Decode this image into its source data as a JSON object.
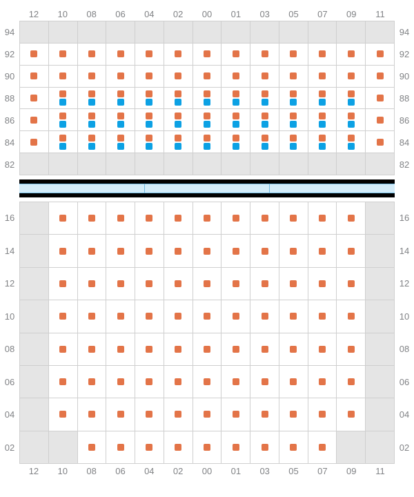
{
  "colors": {
    "orange_marker": "#e37448",
    "blue_marker": "#0ca1e4",
    "inactive_cell_bg": "#e5e5e5",
    "active_cell_bg": "#ffffff",
    "grid_line": "#cfcfcf",
    "label_text": "#808285",
    "divider_black": "#000000",
    "divider_strip_bg": "#d3ecf9",
    "divider_strip_border": "#6fb9e0"
  },
  "columns": [
    "12",
    "10",
    "08",
    "06",
    "04",
    "02",
    "00",
    "01",
    "03",
    "05",
    "07",
    "09",
    "11"
  ],
  "top_grid": {
    "rows": [
      "94",
      "92",
      "90",
      "88",
      "86",
      "84",
      "82"
    ],
    "cells": [
      {
        "row": "94",
        "all_inactive": true
      },
      {
        "row": "92",
        "markers": [
          [
            "o"
          ],
          [
            "o"
          ],
          [
            "o"
          ],
          [
            "o"
          ],
          [
            "o"
          ],
          [
            "o"
          ],
          [
            "o"
          ],
          [
            "o"
          ],
          [
            "o"
          ],
          [
            "o"
          ],
          [
            "o"
          ],
          [
            "o"
          ],
          [
            "o"
          ]
        ]
      },
      {
        "row": "90",
        "markers": [
          [
            "o"
          ],
          [
            "o"
          ],
          [
            "o"
          ],
          [
            "o"
          ],
          [
            "o"
          ],
          [
            "o"
          ],
          [
            "o"
          ],
          [
            "o"
          ],
          [
            "o"
          ],
          [
            "o"
          ],
          [
            "o"
          ],
          [
            "o"
          ],
          [
            "o"
          ]
        ]
      },
      {
        "row": "88",
        "markers": [
          [
            "o"
          ],
          [
            "o",
            "b"
          ],
          [
            "o",
            "b"
          ],
          [
            "o",
            "b"
          ],
          [
            "o",
            "b"
          ],
          [
            "o",
            "b"
          ],
          [
            "o",
            "b"
          ],
          [
            "o",
            "b"
          ],
          [
            "o",
            "b"
          ],
          [
            "o",
            "b"
          ],
          [
            "o",
            "b"
          ],
          [
            "o",
            "b"
          ],
          [
            "o"
          ]
        ]
      },
      {
        "row": "86",
        "markers": [
          [
            "o"
          ],
          [
            "o",
            "b"
          ],
          [
            "o",
            "b"
          ],
          [
            "o",
            "b"
          ],
          [
            "o",
            "b"
          ],
          [
            "o",
            "b"
          ],
          [
            "o",
            "b"
          ],
          [
            "o",
            "b"
          ],
          [
            "o",
            "b"
          ],
          [
            "o",
            "b"
          ],
          [
            "o",
            "b"
          ],
          [
            "o",
            "b"
          ],
          [
            "o"
          ]
        ]
      },
      {
        "row": "84",
        "markers": [
          [
            "o"
          ],
          [
            "o",
            "b"
          ],
          [
            "o",
            "b"
          ],
          [
            "o",
            "b"
          ],
          [
            "o",
            "b"
          ],
          [
            "o",
            "b"
          ],
          [
            "o",
            "b"
          ],
          [
            "o",
            "b"
          ],
          [
            "o",
            "b"
          ],
          [
            "o",
            "b"
          ],
          [
            "o",
            "b"
          ],
          [
            "o",
            "b"
          ],
          [
            "o"
          ]
        ]
      },
      {
        "row": "82",
        "all_inactive": true
      }
    ]
  },
  "bottom_grid": {
    "rows": [
      "16",
      "14",
      "12",
      "10",
      "08",
      "06",
      "04",
      "02"
    ],
    "cells": [
      {
        "row": "16",
        "inactive_cols": [
          "12",
          "11"
        ],
        "markers_cols": [
          "10",
          "08",
          "06",
          "04",
          "02",
          "00",
          "01",
          "03",
          "05",
          "07",
          "09"
        ]
      },
      {
        "row": "14",
        "inactive_cols": [
          "12",
          "11"
        ],
        "markers_cols": [
          "10",
          "08",
          "06",
          "04",
          "02",
          "00",
          "01",
          "03",
          "05",
          "07",
          "09"
        ]
      },
      {
        "row": "12",
        "inactive_cols": [
          "12",
          "11"
        ],
        "markers_cols": [
          "10",
          "08",
          "06",
          "04",
          "02",
          "00",
          "01",
          "03",
          "05",
          "07",
          "09"
        ]
      },
      {
        "row": "10",
        "inactive_cols": [
          "12",
          "11"
        ],
        "markers_cols": [
          "10",
          "08",
          "06",
          "04",
          "02",
          "00",
          "01",
          "03",
          "05",
          "07",
          "09"
        ]
      },
      {
        "row": "08",
        "inactive_cols": [
          "12",
          "11"
        ],
        "markers_cols": [
          "10",
          "08",
          "06",
          "04",
          "02",
          "00",
          "01",
          "03",
          "05",
          "07",
          "09"
        ]
      },
      {
        "row": "06",
        "inactive_cols": [
          "12",
          "11"
        ],
        "markers_cols": [
          "10",
          "08",
          "06",
          "04",
          "02",
          "00",
          "01",
          "03",
          "05",
          "07",
          "09"
        ]
      },
      {
        "row": "04",
        "inactive_cols": [
          "12",
          "11"
        ],
        "markers_cols": [
          "10",
          "08",
          "06",
          "04",
          "02",
          "00",
          "01",
          "03",
          "05",
          "07",
          "09"
        ]
      },
      {
        "row": "02",
        "inactive_cols": [
          "12",
          "10",
          "09",
          "11"
        ],
        "markers_cols": [
          "08",
          "06",
          "04",
          "02",
          "00",
          "01",
          "03",
          "05",
          "07"
        ]
      }
    ]
  },
  "divider_segments": 3
}
